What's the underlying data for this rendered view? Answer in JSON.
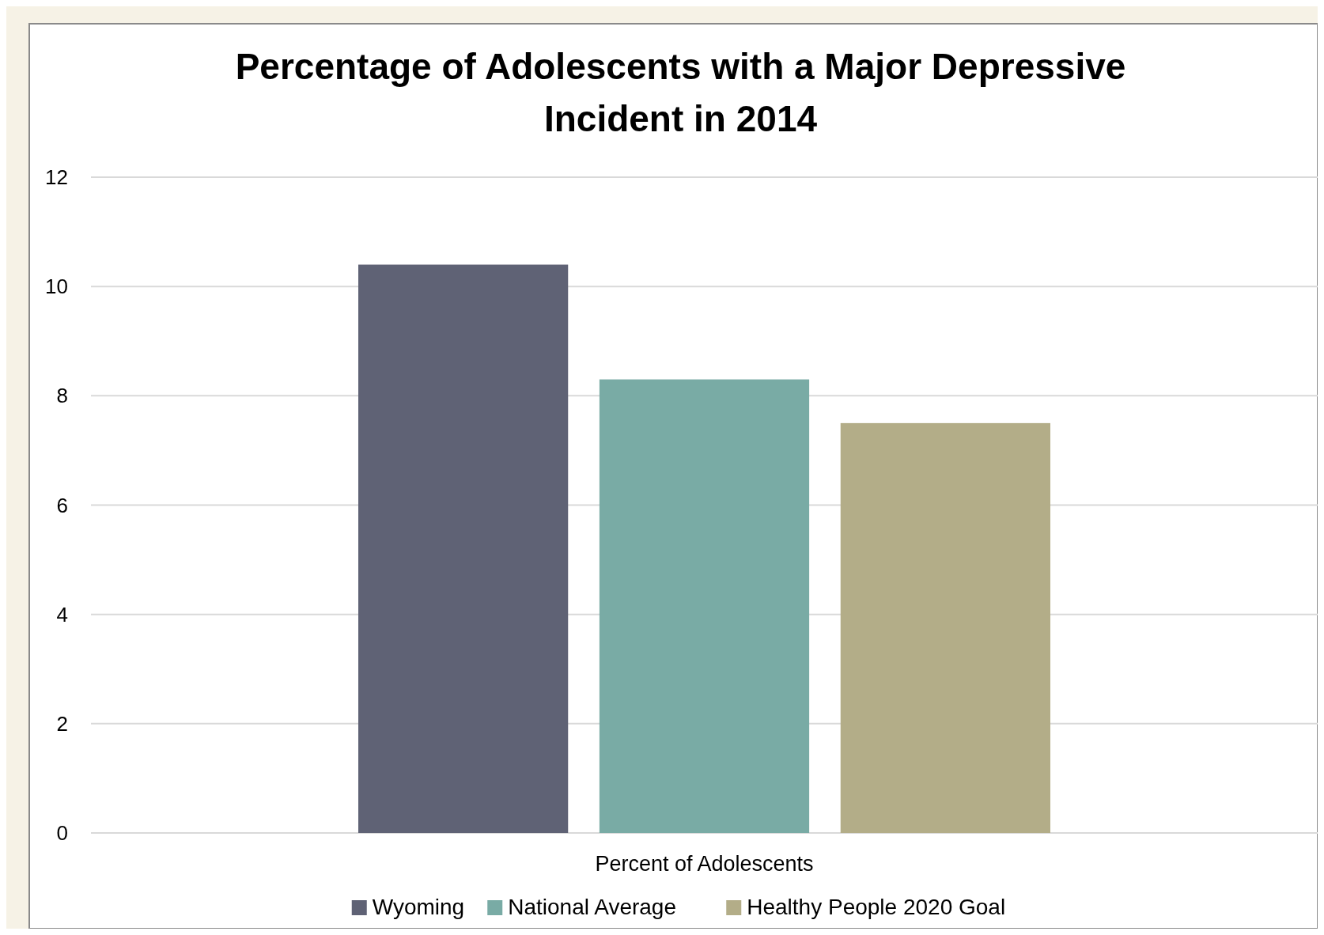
{
  "chart_data": {
    "type": "bar",
    "title": "Percentage of Adolescents with a Major Depressive Incident in 2014",
    "categories": [
      "Percent of Adolescents"
    ],
    "series": [
      {
        "name": "Wyoming",
        "color": "#5f6275",
        "values": [
          10.4
        ]
      },
      {
        "name": "National Average",
        "color": "#79aba5",
        "values": [
          8.3
        ]
      },
      {
        "name": "Healthy People 2020 Goal",
        "color": "#b3ad88",
        "values": [
          7.5
        ]
      }
    ],
    "ylim": [
      0,
      12
    ],
    "yticks": [
      0,
      2,
      4,
      6,
      8,
      10,
      12
    ],
    "grid": "y",
    "legend": "bottom"
  }
}
